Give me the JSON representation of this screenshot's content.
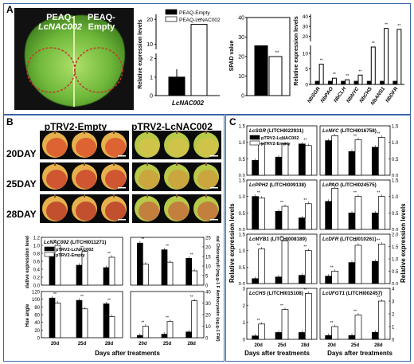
{
  "panels": {
    "a": "A",
    "b": "B",
    "c": "C"
  },
  "panel_a": {
    "leaf_labels": {
      "left_line1": "PEAQ-",
      "left_line2": "LcNAC002",
      "right_line1": "PEAQ-",
      "right_line2": "Empty"
    }
  },
  "panel_b": {
    "col_headers": [
      "pTRV2-Empty",
      "pTRV2-LcNAC002"
    ],
    "row_labels": [
      "20DAY",
      "25DAY",
      "28DAY"
    ],
    "xlabel": "Days after treatments"
  },
  "panel_c": {
    "ylabel_left": "Relative expression levels",
    "ylabel_right": "Relative expression levels",
    "xlabel_left": "Days after treatments",
    "xlabel_right": "Days after treatments"
  },
  "chart_data": [
    {
      "type": "bar",
      "panel": "A-expression",
      "categories": [
        "LcNAC002"
      ],
      "series": [
        {
          "name": "PEAQ-Empty",
          "values": [
            1.0
          ],
          "color": "#000000"
        },
        {
          "name": "PEAQ-LcNAC002",
          "values": [
            18.0
          ],
          "color": "#ffffff"
        }
      ],
      "ylabel": "Relative expression levels",
      "axis_break": true,
      "yticks_lower": [
        0,
        1,
        2
      ],
      "yticks_upper": [
        10,
        20
      ],
      "annotations": [
        "**"
      ]
    },
    {
      "type": "bar",
      "panel": "A-SPAD",
      "categories": [
        ""
      ],
      "series": [
        {
          "name": "PEAQ-Empty",
          "values": [
            25.5
          ],
          "color": "#000000"
        },
        {
          "name": "PEAQ-LcNAC002",
          "values": [
            20.0
          ],
          "color": "#ffffff"
        }
      ],
      "ylabel": "SPAD value",
      "ylim": [
        0,
        40
      ],
      "yticks": [
        0,
        10,
        20,
        30,
        40
      ],
      "annotations": [
        "**"
      ]
    },
    {
      "type": "bar",
      "panel": "A-genes",
      "categories": [
        "NbSGR",
        "NbPAO",
        "NbCLH",
        "NbNYC",
        "NbCHS",
        "NbANS1",
        "NbDFR"
      ],
      "series": [
        {
          "name": "PEAQ-Empty",
          "values": [
            1,
            1,
            1,
            1,
            1,
            1,
            1
          ],
          "color": "#000000"
        },
        {
          "name": "PEAQ-LcNAC002",
          "values": [
            6.5,
            2.0,
            1.5,
            3.0,
            12.0,
            28.0,
            27.0
          ],
          "color": "#ffffff"
        }
      ],
      "ylabel": "Relative expression levels",
      "axis_break": true,
      "yticks_lower": [
        0,
        5,
        10
      ],
      "yticks_upper": [
        20,
        30,
        40
      ]
    },
    {
      "type": "bar",
      "panel": "B-expression",
      "title": "LcNAC002 (LITCHI011271)",
      "categories": [
        "20d",
        "25d",
        "28d"
      ],
      "series": [
        {
          "name": "pTRV2-LcNAC002",
          "values": [
            0.78,
            0.5,
            0.44
          ],
          "color": "#000000"
        },
        {
          "name": "pTRV2-Empty",
          "values": [
            1.0,
            0.85,
            0.7
          ],
          "color": "#ffffff"
        }
      ],
      "ylabel": "Relative expression levels",
      "ylim": [
        0,
        1.2
      ],
      "yticks": [
        "0.0",
        "0.2",
        "0.4",
        "0.6",
        "0.8",
        "1.0",
        "1.2"
      ]
    },
    {
      "type": "bar",
      "panel": "B-chlorophyll",
      "categories": [
        "20d",
        "25d",
        "28d"
      ],
      "series": [
        {
          "name": "pTRV2-LcNAC002",
          "values": [
            22,
            18.5,
            14
          ],
          "color": "#000000"
        },
        {
          "name": "pTRV2-Empty",
          "values": [
            11,
            12,
            7.5
          ],
          "color": "#ffffff"
        }
      ],
      "ylabel_right": "Total Chlorophyll (mg.g-1 FW)",
      "ylim": [
        0,
        25
      ],
      "yticks": [
        0,
        5,
        10,
        15,
        20,
        25
      ]
    },
    {
      "type": "bar",
      "panel": "B-hue",
      "categories": [
        "20d",
        "25d",
        "28d"
      ],
      "series": [
        {
          "name": "pTRV2-LcNAC002",
          "values": [
            103,
            97,
            88
          ],
          "color": "#000000"
        },
        {
          "name": "pTRV2-Empty",
          "values": [
            90,
            75,
            55
          ],
          "color": "#ffffff"
        }
      ],
      "ylabel": "Hue angle",
      "ylim": [
        0,
        120
      ],
      "yticks": [
        0,
        20,
        40,
        60,
        80,
        100,
        120
      ]
    },
    {
      "type": "bar",
      "panel": "B-anthocyanin",
      "categories": [
        "20d",
        "25d",
        "28d"
      ],
      "series": [
        {
          "name": "pTRV2-LcNAC002",
          "values": [
            2,
            3,
            5
          ],
          "color": "#000000"
        },
        {
          "name": "pTRV2-Empty",
          "values": [
            10,
            14,
            32
          ],
          "color": "#ffffff"
        }
      ],
      "ylabel_right": "Anthocyanin (ug.g-1 FW)",
      "ylim": [
        0,
        40
      ],
      "yticks": [
        0,
        10,
        20,
        30,
        40
      ]
    },
    {
      "type": "bar",
      "panel": "C-SGR",
      "title": "LcSGR (LITCHI022931)",
      "categories": [
        "20d",
        "25d",
        "28d"
      ],
      "series": [
        {
          "name": "pTRV2-LcNAC002",
          "values": [
            0.45,
            0.55,
            0.95
          ],
          "color": "#000000"
        },
        {
          "name": "pTRV2-Empty",
          "values": [
            0.95,
            0.95,
            0.9
          ],
          "color": "#ffffff"
        }
      ],
      "ylim": [
        0,
        1.5
      ],
      "yticks": [
        "0.0",
        "0.5",
        "1.0",
        "1.5"
      ]
    },
    {
      "type": "bar",
      "panel": "C-NYC",
      "title": "LcNYC (LITCHI016758)",
      "categories": [
        "20d",
        "25d",
        "28d"
      ],
      "series": [
        {
          "name": "pTRV2-LcNAC002",
          "values": [
            1.05,
            0.72,
            0.85
          ],
          "color": "#000000"
        },
        {
          "name": "pTRV2-Empty",
          "values": [
            1.2,
            1.08,
            1.15
          ],
          "color": "#ffffff"
        }
      ],
      "ylim": [
        0,
        1.5
      ],
      "yticks": [
        "0.0",
        "0.5",
        "1.0",
        "1.5"
      ]
    },
    {
      "type": "bar",
      "panel": "C-PPH2",
      "title": "LcPPH2 (LITCHI009138)",
      "categories": [
        "20d",
        "25d",
        "28d"
      ],
      "series": [
        {
          "name": "pTRV2-LcNAC002",
          "values": [
            1.0,
            0.55,
            0.35
          ],
          "color": "#000000"
        },
        {
          "name": "pTRV2-Empty",
          "values": [
            0.95,
            0.7,
            0.78
          ],
          "color": "#ffffff"
        }
      ],
      "ylim": [
        0,
        1.5
      ],
      "yticks": [
        "0.0",
        "0.5",
        "1.0",
        "1.5"
      ]
    },
    {
      "type": "bar",
      "panel": "C-PAO",
      "title": "LcPAO (LITCHI024575)",
      "categories": [
        "20d",
        "25d",
        "28d"
      ],
      "series": [
        {
          "name": "pTRV2-LcNAC002",
          "values": [
            0.85,
            0.5,
            0.5
          ],
          "color": "#000000"
        },
        {
          "name": "pTRV2-Empty",
          "values": [
            1.25,
            1.0,
            1.0
          ],
          "color": "#ffffff"
        }
      ],
      "ylim": [
        0,
        1.5
      ],
      "yticks": [
        "0.0",
        "0.5",
        "1.0",
        "1.5"
      ]
    },
    {
      "type": "bar",
      "panel": "C-MYB1",
      "title": "LcMYB1 (LITCHI008189)",
      "categories": [
        "20d",
        "25d",
        "28d"
      ],
      "series": [
        {
          "name": "pTRV2-LcNAC002",
          "values": [
            0.15,
            0.2,
            0.25
          ],
          "color": "#000000"
        },
        {
          "name": "pTRV2-Empty",
          "values": [
            1.05,
            1.3,
            1.0
          ],
          "color": "#ffffff"
        }
      ],
      "ylim": [
        0,
        1.5
      ],
      "yticks": [
        "0.0",
        "0.5",
        "1.0",
        "1.5"
      ]
    },
    {
      "type": "bar",
      "panel": "C-DFR",
      "title": "LcDFR (LITCHI010261)",
      "categories": [
        "20d",
        "25d",
        "28d"
      ],
      "series": [
        {
          "name": "pTRV2-LcNAC002",
          "values": [
            0.3,
            0.85,
            0.9
          ],
          "color": "#000000"
        },
        {
          "name": "pTRV2-Empty",
          "values": [
            0.5,
            1.55,
            1.6
          ],
          "color": "#ffffff"
        }
      ],
      "ylim": [
        0,
        2.0
      ],
      "yticks": [
        "0.0",
        "0.5",
        "1.0",
        "1.5",
        "2.0"
      ]
    },
    {
      "type": "bar",
      "panel": "C-CHS",
      "title": "LcCHS (LITCHI015108)",
      "categories": [
        "20d",
        "25d",
        "28d"
      ],
      "series": [
        {
          "name": "pTRV2-LcNAC002",
          "values": [
            0.2,
            0.4,
            0.4
          ],
          "color": "#000000"
        },
        {
          "name": "pTRV2-Empty",
          "values": [
            0.9,
            1.75,
            2.7
          ],
          "color": "#ffffff"
        }
      ],
      "ylim": [
        0,
        3.0
      ],
      "yticks": [
        "0",
        "1",
        "2",
        "3"
      ]
    },
    {
      "type": "bar",
      "panel": "C-UFGT1",
      "title": "LcUFGT1 (LITCHI002457)",
      "categories": [
        "20d",
        "25d",
        "28d"
      ],
      "series": [
        {
          "name": "pTRV2-LcNAC002",
          "values": [
            0.3,
            0.3,
            0.55
          ],
          "color": "#000000"
        },
        {
          "name": "pTRV2-Empty",
          "values": [
            1.0,
            1.9,
            3.0
          ],
          "color": "#ffffff"
        }
      ],
      "ylim": [
        0,
        4
      ],
      "yticks": [
        "0",
        "1",
        "2",
        "3",
        "4"
      ]
    }
  ]
}
